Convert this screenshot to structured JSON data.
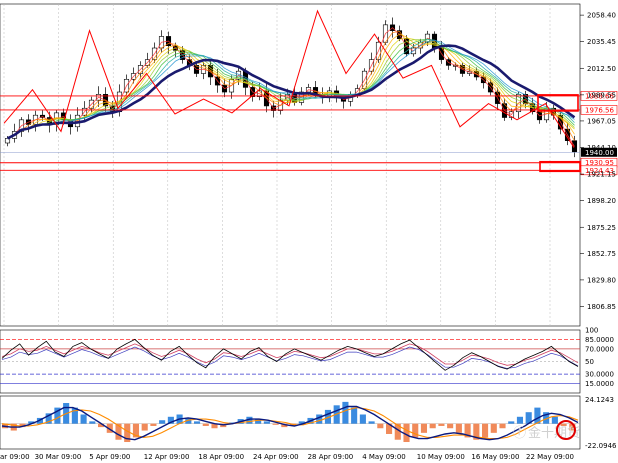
{
  "chart_data": {
    "type": "candlestick",
    "main_panel": {
      "y_ticks": [
        "2058.40",
        "2035.45",
        "2012.50",
        "1989.55",
        "1967.05",
        "1944.10",
        "1921.15",
        "1898.20",
        "1875.25",
        "1852.75",
        "1829.80",
        "1806.85"
      ],
      "ylim": [
        1790,
        2068
      ],
      "current_price": "1940.00",
      "horizontal_levels": [
        {
          "value": 1988.66,
          "label": "1988.66",
          "color": "#ff0000"
        },
        {
          "value": 1976.56,
          "label": "1976.56",
          "color": "#ff0000"
        },
        {
          "value": 1930.95,
          "label": "1930.95",
          "color": "#ff0000"
        },
        {
          "value": 1924.43,
          "label": "1924.43",
          "color": "#ff0000"
        }
      ],
      "close_series": [
        1952,
        1958,
        1968,
        1964,
        1972,
        1970,
        1964,
        1974,
        1968,
        1962,
        1972,
        1978,
        1985,
        1990,
        1980,
        1975,
        1992,
        2003,
        2008,
        2015,
        2020,
        2030,
        2040,
        2032,
        2028,
        2020,
        2015,
        2008,
        2015,
        2005,
        1998,
        1992,
        2003,
        2010,
        1996,
        1988,
        1993,
        1980,
        1976,
        1985,
        1990,
        1983,
        1992,
        1996,
        1990,
        1988,
        1993,
        1987,
        1984,
        1990,
        1995,
        2010,
        2020,
        2035,
        2050,
        2045,
        2038,
        2025,
        2030,
        2035,
        2042,
        2030,
        2020,
        2015,
        2015,
        2008,
        2010,
        2005,
        2000,
        1992,
        1982,
        1970,
        1975,
        1990,
        1982,
        1975,
        1968,
        1978,
        1972,
        1960,
        1950,
        1940
      ],
      "zigzag": [
        1965,
        1994,
        1958,
        2045,
        1978,
        2008,
        1973,
        1986,
        1974,
        1995,
        1980,
        2062,
        2008,
        2042,
        2004,
        2015,
        1962,
        1982,
        1968,
        1982,
        1944
      ]
    },
    "x_ticks": [
      "ar 09:00",
      "30 Mar 09:00",
      "5 Apr 09:00",
      "12 Apr 09:00",
      "18 Apr 09:00",
      "24 Apr 09:00",
      "28 Apr 09:00",
      "4 May 09:00",
      "10 May 09:00",
      "16 May 09:00",
      "22 May 09:00"
    ],
    "rsi_panel": {
      "y_ticks": [
        "100",
        "85.0000",
        "70.0000",
        "50",
        "30.0000",
        "15.0000"
      ],
      "levels": [
        85,
        70,
        30,
        15
      ],
      "ylim": [
        0,
        100
      ],
      "fast": [
        55,
        68,
        78,
        60,
        72,
        82,
        65,
        58,
        74,
        80,
        70,
        62,
        55,
        70,
        78,
        85,
        72,
        60,
        52,
        66,
        74,
        60,
        48,
        40,
        58,
        70,
        62,
        54,
        66,
        72,
        58,
        50,
        62,
        70,
        64,
        58,
        52,
        60,
        68,
        74,
        70,
        64,
        58,
        62,
        70,
        78,
        84,
        72,
        60,
        48,
        36,
        44,
        56,
        64,
        58,
        50,
        42,
        38,
        46,
        54,
        60,
        66,
        74,
        62,
        50,
        42
      ],
      "slow": [
        58,
        62,
        70,
        66,
        68,
        74,
        68,
        62,
        68,
        74,
        70,
        64,
        60,
        66,
        72,
        78,
        72,
        64,
        58,
        62,
        68,
        62,
        54,
        48,
        54,
        64,
        62,
        58,
        62,
        68,
        62,
        56,
        60,
        66,
        64,
        60,
        56,
        58,
        64,
        70,
        70,
        66,
        62,
        62,
        66,
        72,
        78,
        74,
        66,
        56,
        46,
        46,
        52,
        60,
        58,
        54,
        48,
        44,
        46,
        52,
        56,
        62,
        68,
        64,
        56,
        48
      ]
    },
    "macd_panel": {
      "y_ticks": [
        "24.1243",
        "-22.0946"
      ],
      "ylim": [
        -22.0946,
        24.1243
      ],
      "histogram": [
        -4,
        -6,
        -3,
        2,
        5,
        9,
        14,
        18,
        14,
        8,
        2,
        -3,
        -8,
        -14,
        -16,
        -12,
        -6,
        -2,
        3,
        6,
        8,
        5,
        2,
        -2,
        -4,
        -3,
        1,
        4,
        6,
        4,
        2,
        -1,
        -3,
        -2,
        2,
        5,
        8,
        12,
        16,
        19,
        14,
        8,
        2,
        -4,
        -9,
        -14,
        -16,
        -12,
        -8,
        -4,
        -2,
        -4,
        -8,
        -12,
        -14,
        -12,
        -8,
        -4,
        2,
        6,
        10,
        14,
        10,
        6,
        -2,
        -6
      ],
      "macd": [
        -2,
        -3,
        -3,
        -1,
        2,
        6,
        10,
        14,
        14,
        11,
        6,
        1,
        -4,
        -9,
        -13,
        -14,
        -11,
        -7,
        -3,
        1,
        4,
        5,
        4,
        2,
        0,
        -1,
        0,
        2,
        4,
        4,
        3,
        1,
        -1,
        -2,
        0,
        3,
        6,
        9,
        12,
        15,
        15,
        12,
        8,
        3,
        -2,
        -7,
        -11,
        -13,
        -13,
        -11,
        -9,
        -8,
        -9,
        -11,
        -13,
        -14,
        -13,
        -10,
        -6,
        -2,
        3,
        7,
        9,
        8,
        5,
        1
      ],
      "signal": [
        0,
        -1,
        -2,
        -2,
        -1,
        1,
        4,
        8,
        11,
        12,
        11,
        8,
        4,
        -1,
        -6,
        -10,
        -12,
        -11,
        -8,
        -4,
        0,
        3,
        4,
        4,
        3,
        1,
        0,
        1,
        2,
        3,
        3,
        2,
        1,
        -1,
        -1,
        1,
        3,
        6,
        9,
        12,
        14,
        13,
        11,
        7,
        2,
        -3,
        -7,
        -10,
        -12,
        -12,
        -11,
        -10,
        -10,
        -11,
        -12,
        -13,
        -13,
        -12,
        -9,
        -5,
        -1,
        3,
        6,
        7,
        6,
        3
      ]
    },
    "watermark": "金十期货"
  }
}
